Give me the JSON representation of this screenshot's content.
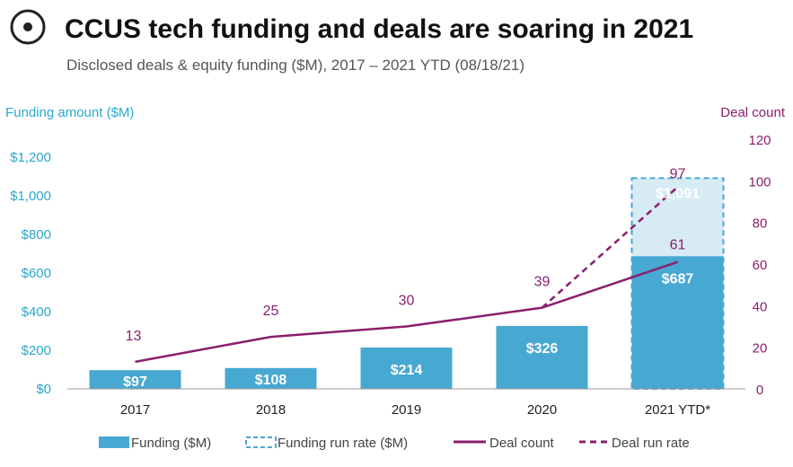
{
  "title": "CCUS tech funding and deals are soaring in 2021",
  "subtitle": "Disclosed deals & equity funding ($M), 2017 – 2021 YTD (08/18/21)",
  "logo_icon": "target-circle-icon",
  "colors": {
    "bar": "#47a8d2",
    "bar_runrate_fill": "#d7ebf4",
    "bar_runrate_stroke": "#47a8d2",
    "deal_line": "#8a1f6e",
    "left_axis": "#2aa8cf",
    "right_axis": "#8a1f6e"
  },
  "chart_data": {
    "type": "bar",
    "categories": [
      "2017",
      "2018",
      "2019",
      "2020",
      "2021 YTD*"
    ],
    "left_axis": {
      "label": "Funding amount ($M)",
      "ylim": [
        0,
        1200
      ],
      "ticks": [
        0,
        200,
        400,
        600,
        800,
        1000,
        1200
      ],
      "tick_labels": [
        "$0",
        "$200",
        "$400",
        "$600",
        "$800",
        "$1,000",
        "$1,200"
      ]
    },
    "right_axis": {
      "label": "Deal count",
      "ylim": [
        0,
        120
      ],
      "ticks": [
        0,
        20,
        40,
        60,
        80,
        100,
        120
      ],
      "tick_labels": [
        "0",
        "20",
        "40",
        "60",
        "80",
        "100",
        "120"
      ]
    },
    "series": [
      {
        "name": "Funding ($M)",
        "kind": "bar",
        "axis": "left",
        "values": [
          97,
          108,
          214,
          326,
          687
        ],
        "labels": [
          "$97",
          "$108",
          "$214",
          "$326",
          "$687"
        ]
      },
      {
        "name": "Funding run rate ($M)",
        "kind": "bar-dashed",
        "axis": "left",
        "values": [
          null,
          null,
          null,
          null,
          1091
        ],
        "labels": [
          null,
          null,
          null,
          null,
          "$1,091"
        ]
      },
      {
        "name": "Deal count",
        "kind": "line",
        "axis": "right",
        "values": [
          13,
          25,
          30,
          39,
          61
        ],
        "labels": [
          "13",
          "25",
          "30",
          "39",
          "61"
        ]
      },
      {
        "name": "Deal run rate",
        "kind": "line-dashed",
        "axis": "right",
        "values": [
          null,
          null,
          null,
          39,
          97
        ],
        "labels": [
          null,
          null,
          null,
          null,
          "97"
        ]
      }
    ],
    "grid": false,
    "legend_position": "bottom"
  }
}
